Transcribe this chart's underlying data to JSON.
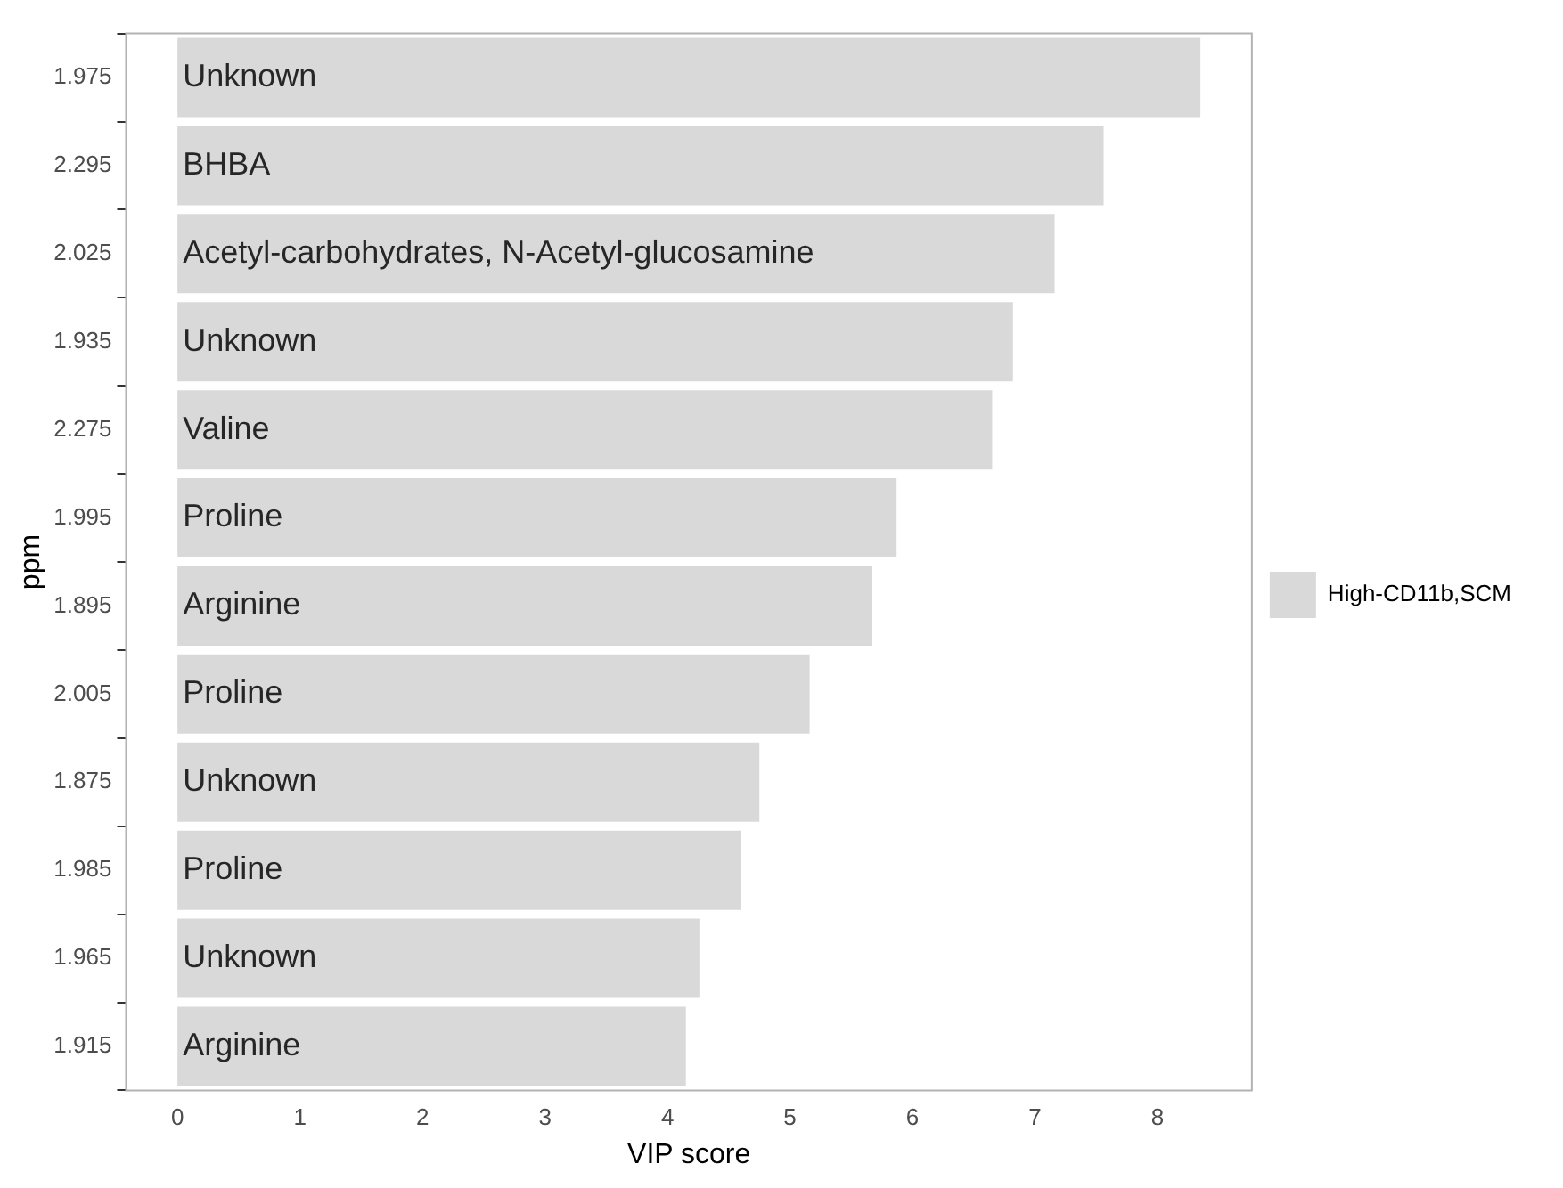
{
  "chart_data": {
    "type": "bar",
    "orientation": "horizontal",
    "xlabel": "VIP score",
    "ylabel": "ppm",
    "categories": [
      "1.975",
      "2.295",
      "2.025",
      "1.935",
      "2.275",
      "1.995",
      "1.895",
      "2.005",
      "1.875",
      "1.985",
      "1.965",
      "1.915"
    ],
    "series": [
      {
        "name": "High-CD11b,SCM",
        "color": "#d9d9d9",
        "values": [
          8.35,
          7.56,
          7.16,
          6.82,
          6.65,
          5.87,
          5.67,
          5.16,
          4.75,
          4.6,
          4.26,
          4.15
        ]
      }
    ],
    "xlim": [
      -0.42,
      8.77
    ],
    "xticks": [
      0,
      1,
      2,
      3,
      4,
      5,
      6,
      7,
      8
    ],
    "grid": false,
    "legend": "right",
    "annotations": [
      {
        "text": "Unknown",
        "y": "1.975"
      },
      {
        "text": "BHBA",
        "y": "2.295"
      },
      {
        "text": "Acetyl-carbohydrates, N-Acetyl-glucosamine",
        "y": "2.025"
      },
      {
        "text": "Unknown",
        "y": "1.935"
      },
      {
        "text": "Valine",
        "y": "2.275"
      },
      {
        "text": "Proline",
        "y": "1.995"
      },
      {
        "text": "Arginine",
        "y": "1.895"
      },
      {
        "text": "Proline",
        "y": "2.005"
      },
      {
        "text": "Unknown",
        "y": "1.875"
      },
      {
        "text": "Proline",
        "y": "1.985"
      },
      {
        "text": "Unknown",
        "y": "1.965"
      },
      {
        "text": "Arginine",
        "y": "1.915"
      }
    ]
  }
}
